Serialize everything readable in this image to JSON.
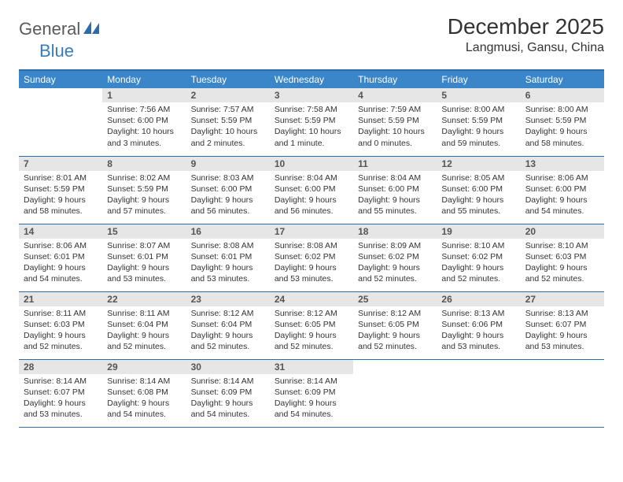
{
  "logo": {
    "text1": "General",
    "text2": "Blue"
  },
  "title": "December 2025",
  "location": "Langmusi, Gansu, China",
  "colors": {
    "header_bg": "#3a86c8",
    "header_text": "#ffffff",
    "border": "#2e6ca8",
    "daynum_bg": "#e6e6e6",
    "logo_blue": "#3a7bbf",
    "logo_gray": "#5a5a5a",
    "body_text": "#333333"
  },
  "weekdays": [
    "Sunday",
    "Monday",
    "Tuesday",
    "Wednesday",
    "Thursday",
    "Friday",
    "Saturday"
  ],
  "weeks": [
    [
      {
        "day": "",
        "sunrise": "",
        "sunset": "",
        "daylight": ""
      },
      {
        "day": "1",
        "sunrise": "Sunrise: 7:56 AM",
        "sunset": "Sunset: 6:00 PM",
        "daylight": "Daylight: 10 hours and 3 minutes."
      },
      {
        "day": "2",
        "sunrise": "Sunrise: 7:57 AM",
        "sunset": "Sunset: 5:59 PM",
        "daylight": "Daylight: 10 hours and 2 minutes."
      },
      {
        "day": "3",
        "sunrise": "Sunrise: 7:58 AM",
        "sunset": "Sunset: 5:59 PM",
        "daylight": "Daylight: 10 hours and 1 minute."
      },
      {
        "day": "4",
        "sunrise": "Sunrise: 7:59 AM",
        "sunset": "Sunset: 5:59 PM",
        "daylight": "Daylight: 10 hours and 0 minutes."
      },
      {
        "day": "5",
        "sunrise": "Sunrise: 8:00 AM",
        "sunset": "Sunset: 5:59 PM",
        "daylight": "Daylight: 9 hours and 59 minutes."
      },
      {
        "day": "6",
        "sunrise": "Sunrise: 8:00 AM",
        "sunset": "Sunset: 5:59 PM",
        "daylight": "Daylight: 9 hours and 58 minutes."
      }
    ],
    [
      {
        "day": "7",
        "sunrise": "Sunrise: 8:01 AM",
        "sunset": "Sunset: 5:59 PM",
        "daylight": "Daylight: 9 hours and 58 minutes."
      },
      {
        "day": "8",
        "sunrise": "Sunrise: 8:02 AM",
        "sunset": "Sunset: 5:59 PM",
        "daylight": "Daylight: 9 hours and 57 minutes."
      },
      {
        "day": "9",
        "sunrise": "Sunrise: 8:03 AM",
        "sunset": "Sunset: 6:00 PM",
        "daylight": "Daylight: 9 hours and 56 minutes."
      },
      {
        "day": "10",
        "sunrise": "Sunrise: 8:04 AM",
        "sunset": "Sunset: 6:00 PM",
        "daylight": "Daylight: 9 hours and 56 minutes."
      },
      {
        "day": "11",
        "sunrise": "Sunrise: 8:04 AM",
        "sunset": "Sunset: 6:00 PM",
        "daylight": "Daylight: 9 hours and 55 minutes."
      },
      {
        "day": "12",
        "sunrise": "Sunrise: 8:05 AM",
        "sunset": "Sunset: 6:00 PM",
        "daylight": "Daylight: 9 hours and 55 minutes."
      },
      {
        "day": "13",
        "sunrise": "Sunrise: 8:06 AM",
        "sunset": "Sunset: 6:00 PM",
        "daylight": "Daylight: 9 hours and 54 minutes."
      }
    ],
    [
      {
        "day": "14",
        "sunrise": "Sunrise: 8:06 AM",
        "sunset": "Sunset: 6:01 PM",
        "daylight": "Daylight: 9 hours and 54 minutes."
      },
      {
        "day": "15",
        "sunrise": "Sunrise: 8:07 AM",
        "sunset": "Sunset: 6:01 PM",
        "daylight": "Daylight: 9 hours and 53 minutes."
      },
      {
        "day": "16",
        "sunrise": "Sunrise: 8:08 AM",
        "sunset": "Sunset: 6:01 PM",
        "daylight": "Daylight: 9 hours and 53 minutes."
      },
      {
        "day": "17",
        "sunrise": "Sunrise: 8:08 AM",
        "sunset": "Sunset: 6:02 PM",
        "daylight": "Daylight: 9 hours and 53 minutes."
      },
      {
        "day": "18",
        "sunrise": "Sunrise: 8:09 AM",
        "sunset": "Sunset: 6:02 PM",
        "daylight": "Daylight: 9 hours and 52 minutes."
      },
      {
        "day": "19",
        "sunrise": "Sunrise: 8:10 AM",
        "sunset": "Sunset: 6:02 PM",
        "daylight": "Daylight: 9 hours and 52 minutes."
      },
      {
        "day": "20",
        "sunrise": "Sunrise: 8:10 AM",
        "sunset": "Sunset: 6:03 PM",
        "daylight": "Daylight: 9 hours and 52 minutes."
      }
    ],
    [
      {
        "day": "21",
        "sunrise": "Sunrise: 8:11 AM",
        "sunset": "Sunset: 6:03 PM",
        "daylight": "Daylight: 9 hours and 52 minutes."
      },
      {
        "day": "22",
        "sunrise": "Sunrise: 8:11 AM",
        "sunset": "Sunset: 6:04 PM",
        "daylight": "Daylight: 9 hours and 52 minutes."
      },
      {
        "day": "23",
        "sunrise": "Sunrise: 8:12 AM",
        "sunset": "Sunset: 6:04 PM",
        "daylight": "Daylight: 9 hours and 52 minutes."
      },
      {
        "day": "24",
        "sunrise": "Sunrise: 8:12 AM",
        "sunset": "Sunset: 6:05 PM",
        "daylight": "Daylight: 9 hours and 52 minutes."
      },
      {
        "day": "25",
        "sunrise": "Sunrise: 8:12 AM",
        "sunset": "Sunset: 6:05 PM",
        "daylight": "Daylight: 9 hours and 52 minutes."
      },
      {
        "day": "26",
        "sunrise": "Sunrise: 8:13 AM",
        "sunset": "Sunset: 6:06 PM",
        "daylight": "Daylight: 9 hours and 53 minutes."
      },
      {
        "day": "27",
        "sunrise": "Sunrise: 8:13 AM",
        "sunset": "Sunset: 6:07 PM",
        "daylight": "Daylight: 9 hours and 53 minutes."
      }
    ],
    [
      {
        "day": "28",
        "sunrise": "Sunrise: 8:14 AM",
        "sunset": "Sunset: 6:07 PM",
        "daylight": "Daylight: 9 hours and 53 minutes."
      },
      {
        "day": "29",
        "sunrise": "Sunrise: 8:14 AM",
        "sunset": "Sunset: 6:08 PM",
        "daylight": "Daylight: 9 hours and 54 minutes."
      },
      {
        "day": "30",
        "sunrise": "Sunrise: 8:14 AM",
        "sunset": "Sunset: 6:09 PM",
        "daylight": "Daylight: 9 hours and 54 minutes."
      },
      {
        "day": "31",
        "sunrise": "Sunrise: 8:14 AM",
        "sunset": "Sunset: 6:09 PM",
        "daylight": "Daylight: 9 hours and 54 minutes."
      },
      {
        "day": "",
        "sunrise": "",
        "sunset": "",
        "daylight": ""
      },
      {
        "day": "",
        "sunrise": "",
        "sunset": "",
        "daylight": ""
      },
      {
        "day": "",
        "sunrise": "",
        "sunset": "",
        "daylight": ""
      }
    ]
  ]
}
